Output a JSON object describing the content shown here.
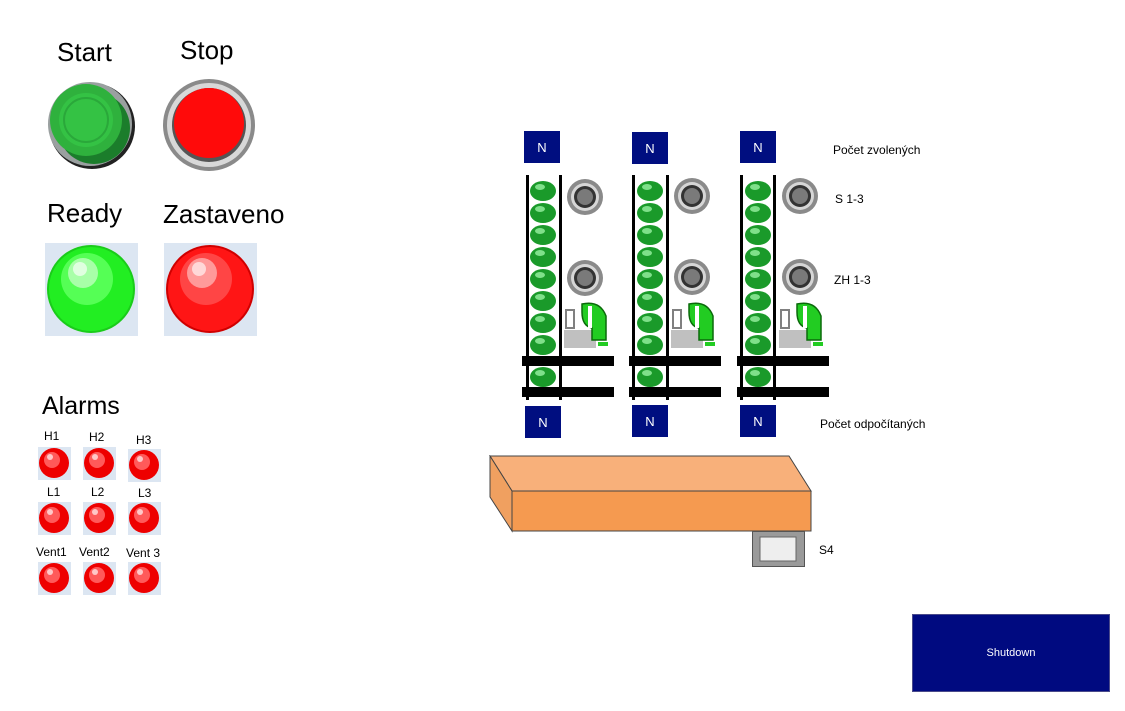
{
  "controls": {
    "start_label": "Start",
    "stop_label": "Stop",
    "ready_label": "Ready",
    "stopped_label": "Zastaveno"
  },
  "alarms": {
    "title": "Alarms",
    "items": [
      "H1",
      "H2",
      "H3",
      "L1",
      "L2",
      "L3",
      "Vent1",
      "Vent2",
      "Vent 3"
    ]
  },
  "counters": {
    "top_n": [
      "N",
      "N",
      "N"
    ],
    "bottom_n": [
      "N",
      "N",
      "N"
    ],
    "selected_label": "Počet zvolených",
    "counted_label": "Počet odpočítaných",
    "sensor_s_label": "S 1-3",
    "sensor_zh_label": "ZH 1-3",
    "s4_label": "S4"
  },
  "shutdown": {
    "label": "Shutdown"
  },
  "colors": {
    "navy": "#000e80",
    "green_led": "#1a9a2a",
    "red_led": "#ff1a1a",
    "conveyor": "#f59a50",
    "panel_bg": "#dce6f2"
  }
}
